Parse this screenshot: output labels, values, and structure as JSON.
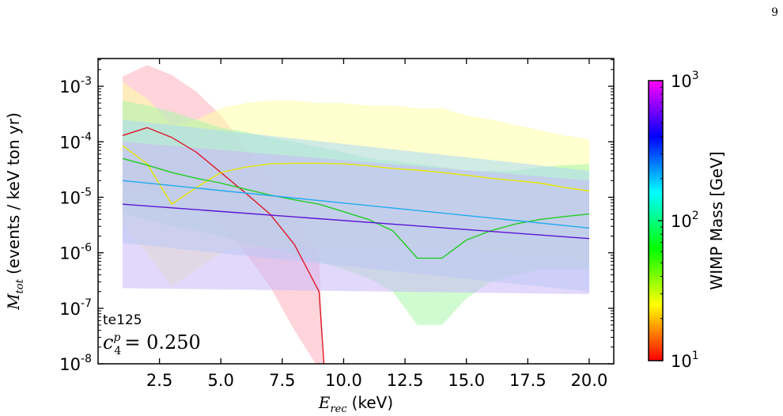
{
  "page_number": "9",
  "chart_data": {
    "type": "line",
    "xlabel": {
      "symbol": "E",
      "sub": "rec",
      "unit": "(keV)"
    },
    "ylabel": {
      "symbol": "M",
      "sub": "tot",
      "unit": "(events / keV ton yr)"
    },
    "xlim": [
      0,
      21
    ],
    "ylim_log10": [
      -8,
      -2.5
    ],
    "x_ticks": [
      2.5,
      5.0,
      7.5,
      10.0,
      12.5,
      15.0,
      17.5,
      20.0
    ],
    "x_tick_labels": [
      "2.5",
      "5.0",
      "7.5",
      "10.0",
      "12.5",
      "15.0",
      "17.5",
      "20.0"
    ],
    "y_ticks": [
      -8,
      -7,
      -6,
      -5,
      -4,
      -3
    ],
    "y_tick_labels": [
      {
        "base": "10",
        "exp": "-8"
      },
      {
        "base": "10",
        "exp": "-7"
      },
      {
        "base": "10",
        "exp": "-6"
      },
      {
        "base": "10",
        "exp": "-5"
      },
      {
        "base": "10",
        "exp": "-4"
      },
      {
        "base": "10",
        "exp": "-3"
      }
    ],
    "annotation": {
      "target": "te125",
      "coupling_symbol": "c",
      "coupling_sub": "4",
      "coupling_sup": "p",
      "coupling_value": "= 0.250"
    },
    "colorbar": {
      "label": "WIMP Mass [GeV]",
      "scale": "log",
      "range_log10": [
        1,
        3
      ],
      "colors": [
        "#ff0000",
        "#ffff00",
        "#00ff00",
        "#00ffff",
        "#0000ff",
        "#ff00ff"
      ],
      "tick_labels": [
        {
          "base": "10",
          "exp": "1",
          "value_log10": 1
        },
        {
          "base": "10",
          "exp": "2",
          "value_log10": 2
        },
        {
          "base": "10",
          "exp": "3",
          "value_log10": 3
        }
      ]
    },
    "series": [
      {
        "color": "#dd1a2a",
        "band_color": "#ffb0bb",
        "x": [
          1,
          2,
          3,
          4,
          5,
          6,
          7,
          8,
          9,
          9.2
        ],
        "y": [
          0.00013,
          0.00018,
          0.00012,
          6.5e-05,
          2.8e-05,
          1.2e-05,
          5e-06,
          1.4e-06,
          2e-07,
          1e-08
        ],
        "band_upper": [
          0.0015,
          0.0024,
          0.0016,
          0.0008,
          0.0003,
          8e-05,
          2e-05,
          6e-06,
          8e-07,
          1e-08
        ],
        "band_lower": [
          1.2e-05,
          1.4e-05,
          1e-05,
          6e-06,
          3e-06,
          1e-06,
          2.5e-07,
          4e-08,
          8e-09,
          5e-09
        ]
      },
      {
        "color": "#e6e600",
        "band_color": "#ffffa8",
        "x": [
          1,
          2,
          3,
          4,
          5,
          6,
          7,
          8,
          9,
          10,
          11,
          12,
          13,
          14,
          15,
          16,
          17,
          18,
          19,
          20
        ],
        "y": [
          8.5e-05,
          4e-05,
          7.5e-06,
          1.5e-05,
          2.8e-05,
          3.5e-05,
          4e-05,
          4.1e-05,
          4.1e-05,
          4e-05,
          3.7e-05,
          3.3e-05,
          3.1e-05,
          2.8e-05,
          2.5e-05,
          2.2e-05,
          2e-05,
          1.8e-05,
          1.5e-05,
          1.3e-05
        ],
        "band_upper": [
          0.0012,
          0.0006,
          0.0002,
          0.00025,
          0.0004,
          0.0005,
          0.00055,
          0.00055,
          0.0005,
          0.0005,
          0.00045,
          0.00045,
          0.0004,
          0.0004,
          0.0003,
          0.00025,
          0.0002,
          0.00016,
          0.00013,
          0.00011
        ],
        "band_lower": [
          3e-06,
          1e-06,
          2.5e-07,
          5e-07,
          1e-06,
          1.2e-06,
          1.3e-06,
          1.3e-06,
          1.3e-06,
          1.3e-06,
          1.3e-06,
          1.3e-06,
          1.2e-06,
          1.2e-06,
          1.1e-06,
          1e-06,
          1e-06,
          9e-07,
          8e-07,
          7e-07
        ]
      },
      {
        "color": "#22cc22",
        "band_color": "#aaf5aa",
        "x": [
          1,
          2,
          3,
          4,
          5,
          6,
          7,
          8,
          9,
          10,
          11,
          12,
          13,
          14,
          15,
          16,
          17,
          18,
          19,
          20
        ],
        "y": [
          5e-05,
          3.8e-05,
          2.8e-05,
          2.2e-05,
          1.8e-05,
          1.4e-05,
          1.1e-05,
          9e-06,
          7.5e-06,
          5.5e-06,
          4e-06,
          2.5e-06,
          8e-07,
          8e-07,
          1.7e-06,
          2.5e-06,
          3.3e-06,
          4e-06,
          4.5e-06,
          5e-06
        ],
        "band_upper": [
          0.00055,
          0.00045,
          0.00035,
          0.00025,
          0.00018,
          0.00015,
          0.00012,
          0.0001,
          8e-05,
          6.5e-05,
          5e-05,
          4.5e-05,
          4e-05,
          3.5e-05,
          3e-05,
          3e-05,
          3e-05,
          3.5e-05,
          3.8e-05,
          4e-05
        ],
        "band_lower": [
          5e-06,
          4e-06,
          3e-06,
          2.5e-06,
          2e-06,
          1.5e-06,
          1.2e-06,
          9e-07,
          7e-07,
          5e-07,
          3.5e-07,
          2e-07,
          5e-08,
          5e-08,
          1.5e-07,
          3e-07,
          4e-07,
          5e-07,
          5e-07,
          5e-07
        ]
      },
      {
        "color": "#22aaee",
        "band_color": "#a9d8f5",
        "x": [
          1,
          20
        ],
        "y": [
          2e-05,
          2.8e-06
        ],
        "band_upper": [
          0.00025,
          3e-05
        ],
        "band_lower": [
          1.5e-06,
          2e-07
        ]
      },
      {
        "color": "#5a14d2",
        "band_color": "#cbb8f7",
        "x": [
          1,
          20
        ],
        "y": [
          7.5e-06,
          1.8e-06
        ],
        "band_upper": [
          0.0001,
          2e-05
        ],
        "band_lower": [
          2.3e-07,
          1.8e-07
        ]
      }
    ]
  }
}
